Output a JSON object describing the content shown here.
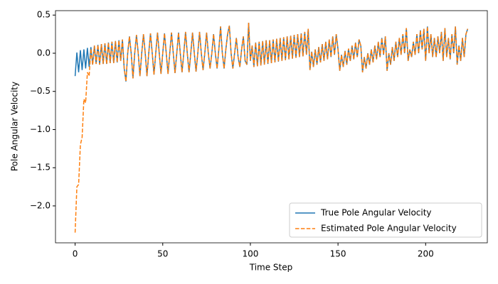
{
  "chart_data": {
    "type": "line",
    "xlabel": "Time Step",
    "ylabel": "Pole Angular Velocity",
    "x": [
      0,
      1,
      2,
      3,
      4,
      5,
      6,
      7,
      8,
      9,
      10,
      11,
      12,
      13,
      14,
      15,
      16,
      17,
      18,
      19,
      20,
      21,
      22,
      23,
      24,
      25,
      26,
      27,
      28,
      29,
      30,
      31,
      32,
      33,
      34,
      35,
      36,
      37,
      38,
      39,
      40,
      41,
      42,
      43,
      44,
      45,
      46,
      47,
      48,
      49,
      50,
      51,
      52,
      53,
      54,
      55,
      56,
      57,
      58,
      59,
      60,
      61,
      62,
      63,
      64,
      65,
      66,
      67,
      68,
      69,
      70,
      71,
      72,
      73,
      74,
      75,
      76,
      77,
      78,
      79,
      80,
      81,
      82,
      83,
      84,
      85,
      86,
      87,
      88,
      89,
      90,
      91,
      92,
      93,
      94,
      95,
      96,
      97,
      98,
      99,
      100,
      101,
      102,
      103,
      104,
      105,
      106,
      107,
      108,
      109,
      110,
      111,
      112,
      113,
      114,
      115,
      116,
      117,
      118,
      119,
      120,
      121,
      122,
      123,
      124,
      125,
      126,
      127,
      128,
      129,
      130,
      131,
      132,
      133,
      134,
      135,
      136,
      137,
      138,
      139,
      140,
      141,
      142,
      143,
      144,
      145,
      146,
      147,
      148,
      149,
      150,
      151,
      152,
      153,
      154,
      155,
      156,
      157,
      158,
      159,
      160,
      161,
      162,
      163,
      164,
      165,
      166,
      167,
      168,
      169,
      170,
      171,
      172,
      173,
      174,
      175,
      176,
      177,
      178,
      179,
      180,
      181,
      182,
      183,
      184,
      185,
      186,
      187,
      188,
      189,
      190,
      191,
      192,
      193,
      194,
      195,
      196,
      197,
      198,
      199,
      200,
      201,
      202,
      203,
      204,
      205,
      206,
      207,
      208,
      209,
      210,
      211,
      212,
      213,
      214,
      215,
      216,
      217,
      218,
      219,
      220,
      221,
      222,
      223,
      224
    ],
    "series": [
      {
        "name": "True Pole Angular Velocity",
        "color": "#1f77b4",
        "linestyle": "solid",
        "values": [
          -0.3,
          0.01,
          -0.25,
          0.04,
          -0.22,
          0.05,
          -0.2,
          0.07,
          -0.18,
          0.08,
          -0.15,
          0.1,
          -0.14,
          0.11,
          -0.15,
          0.12,
          -0.14,
          0.13,
          -0.14,
          0.14,
          -0.13,
          0.15,
          -0.13,
          0.16,
          -0.12,
          0.17,
          -0.1,
          0.18,
          -0.2,
          -0.37,
          0.0,
          0.22,
          0.0,
          -0.33,
          0.0,
          0.24,
          0.0,
          -0.3,
          0.0,
          0.25,
          0.0,
          -0.3,
          0.0,
          0.26,
          0.0,
          -0.28,
          0.0,
          0.27,
          0.0,
          -0.27,
          0.0,
          0.26,
          0.0,
          -0.27,
          0.0,
          0.27,
          0.0,
          -0.26,
          0.0,
          0.27,
          0.0,
          -0.25,
          0.0,
          0.28,
          0.0,
          -0.25,
          0.0,
          0.27,
          0.0,
          -0.24,
          0.0,
          0.28,
          0.0,
          -0.22,
          0.0,
          0.27,
          0.0,
          -0.2,
          0.0,
          0.25,
          0.0,
          -0.2,
          0.05,
          0.35,
          0.0,
          -0.2,
          0.05,
          0.25,
          0.36,
          0.0,
          -0.2,
          0.0,
          0.2,
          -0.05,
          -0.18,
          0.05,
          0.22,
          -0.1,
          -0.15,
          0.4,
          -0.1,
          0.1,
          -0.18,
          0.14,
          -0.17,
          0.15,
          -0.16,
          0.16,
          -0.15,
          0.17,
          -0.14,
          0.17,
          -0.13,
          0.18,
          -0.12,
          0.19,
          -0.11,
          0.2,
          -0.1,
          0.21,
          -0.09,
          0.22,
          -0.08,
          0.23,
          -0.07,
          0.24,
          -0.06,
          0.25,
          -0.05,
          0.26,
          -0.04,
          0.28,
          -0.02,
          0.32,
          -0.22,
          0.02,
          -0.18,
          0.05,
          -0.15,
          0.08,
          -0.12,
          0.12,
          -0.1,
          0.15,
          -0.08,
          0.18,
          -0.05,
          0.22,
          -0.02,
          0.25,
          0.05,
          -0.23,
          -0.02,
          -0.18,
          0.03,
          -0.15,
          0.06,
          -0.1,
          0.1,
          -0.08,
          0.14,
          -0.05,
          0.18,
          0.1,
          -0.25,
          -0.05,
          -0.2,
          0.0,
          -0.15,
          0.05,
          -0.12,
          0.1,
          -0.08,
          0.15,
          -0.05,
          0.2,
          -0.02,
          0.22,
          -0.23,
          0.0,
          -0.15,
          0.08,
          -0.1,
          0.15,
          -0.05,
          0.2,
          -0.02,
          0.25,
          0.0,
          0.33,
          -0.1,
          0.05,
          -0.05,
          0.15,
          -0.02,
          0.25,
          0.0,
          0.3,
          0.05,
          0.32,
          -0.1,
          0.35,
          0.0,
          0.25,
          -0.05,
          0.2,
          -0.05,
          0.22,
          0.0,
          0.28,
          -0.1,
          0.33,
          -0.05,
          0.2,
          -0.08,
          0.25,
          0.0,
          0.35,
          -0.15,
          0.1,
          -0.1,
          0.2,
          -0.05,
          0.25,
          0.32
        ]
      },
      {
        "name": "Estimated Pole Angular Velocity",
        "color": "#ff7f0e",
        "linestyle": "dashed",
        "values": [
          -2.35,
          -1.75,
          -1.72,
          -1.2,
          -1.1,
          -0.6,
          -0.65,
          -0.25,
          -0.3,
          0.06,
          -0.15,
          0.1,
          -0.14,
          0.11,
          -0.15,
          0.12,
          -0.14,
          0.13,
          -0.14,
          0.14,
          -0.13,
          0.15,
          -0.13,
          0.16,
          -0.12,
          0.17,
          -0.1,
          0.18,
          -0.2,
          -0.37,
          0.0,
          0.22,
          0.0,
          -0.33,
          0.0,
          0.24,
          0.0,
          -0.3,
          0.0,
          0.25,
          0.0,
          -0.3,
          0.0,
          0.26,
          0.0,
          -0.28,
          0.0,
          0.27,
          0.0,
          -0.27,
          0.0,
          0.26,
          0.0,
          -0.27,
          0.0,
          0.27,
          0.0,
          -0.26,
          0.0,
          0.27,
          0.0,
          -0.25,
          0.0,
          0.28,
          0.0,
          -0.25,
          0.0,
          0.27,
          0.0,
          -0.24,
          0.0,
          0.28,
          0.0,
          -0.22,
          0.0,
          0.27,
          0.0,
          -0.2,
          0.0,
          0.25,
          0.0,
          -0.2,
          0.05,
          0.35,
          0.0,
          -0.2,
          0.05,
          0.25,
          0.36,
          0.0,
          -0.2,
          0.0,
          0.2,
          -0.05,
          -0.18,
          0.05,
          0.22,
          -0.1,
          -0.15,
          0.4,
          -0.1,
          0.1,
          -0.18,
          0.14,
          -0.17,
          0.15,
          -0.16,
          0.16,
          -0.15,
          0.17,
          -0.14,
          0.17,
          -0.13,
          0.18,
          -0.12,
          0.19,
          -0.11,
          0.2,
          -0.1,
          0.21,
          -0.09,
          0.22,
          -0.08,
          0.23,
          -0.07,
          0.24,
          -0.06,
          0.25,
          -0.05,
          0.26,
          -0.04,
          0.28,
          -0.02,
          0.32,
          -0.22,
          0.02,
          -0.18,
          0.05,
          -0.15,
          0.08,
          -0.12,
          0.12,
          -0.1,
          0.15,
          -0.08,
          0.18,
          -0.05,
          0.22,
          -0.02,
          0.25,
          0.05,
          -0.23,
          -0.02,
          -0.18,
          0.03,
          -0.15,
          0.06,
          -0.1,
          0.1,
          -0.08,
          0.14,
          -0.05,
          0.18,
          0.1,
          -0.25,
          -0.05,
          -0.2,
          0.0,
          -0.15,
          0.05,
          -0.12,
          0.1,
          -0.08,
          0.15,
          -0.05,
          0.2,
          -0.02,
          0.22,
          -0.23,
          0.0,
          -0.15,
          0.08,
          -0.1,
          0.15,
          -0.05,
          0.2,
          -0.02,
          0.25,
          0.0,
          0.33,
          -0.1,
          0.05,
          -0.05,
          0.15,
          -0.02,
          0.25,
          0.0,
          0.3,
          0.05,
          0.32,
          -0.1,
          0.35,
          0.0,
          0.25,
          -0.05,
          0.2,
          -0.05,
          0.22,
          0.0,
          0.28,
          -0.1,
          0.33,
          -0.05,
          0.2,
          -0.08,
          0.25,
          0.0,
          0.35,
          -0.15,
          0.1,
          -0.1,
          0.2,
          -0.05,
          0.25,
          0.32
        ]
      }
    ],
    "xlim": [
      -11.2,
      235.2
    ],
    "ylim": [
      -2.484,
      0.558
    ],
    "xticks": [
      0,
      50,
      100,
      150,
      200
    ],
    "yticks": [
      {
        "value": -2.0,
        "label": "−2.0"
      },
      {
        "value": -1.5,
        "label": "−1.5"
      },
      {
        "value": -1.0,
        "label": "−1.0"
      },
      {
        "value": -0.5,
        "label": "−0.5"
      },
      {
        "value": 0.0,
        "label": "0.0"
      },
      {
        "value": 0.5,
        "label": "0.5"
      }
    ],
    "grid": false,
    "legend": "lower right"
  }
}
